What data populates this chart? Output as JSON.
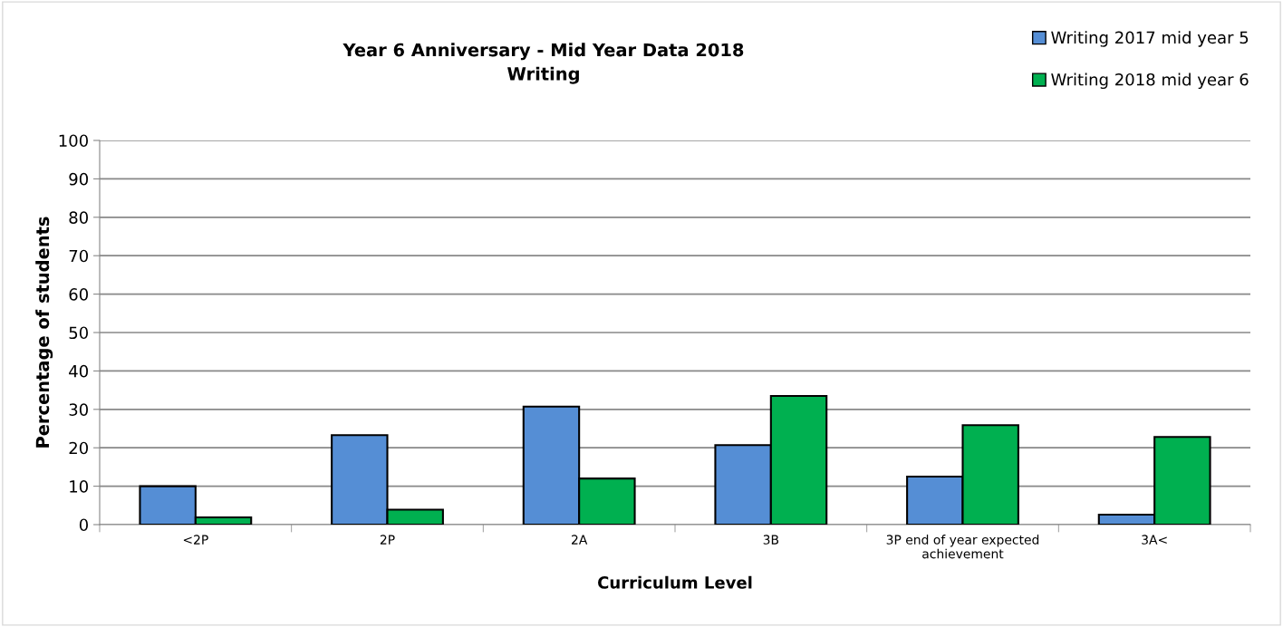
{
  "chart_data": {
    "type": "bar",
    "title": "Year 6 Anniversary - Mid Year Data 2018\nWriting",
    "xlabel": "Curriculum Level",
    "ylabel": "Percentage of students",
    "categories": [
      "<2P",
      "2P",
      "2A",
      "3B",
      "3P end of year expected\nachievement",
      "3A<"
    ],
    "series": [
      {
        "name": "Writing 2017 mid year 5",
        "color": "#558ed5",
        "values": [
          10.0,
          23.3,
          30.7,
          20.7,
          12.5,
          2.6
        ]
      },
      {
        "name": "Writing 2018 mid year 6",
        "color": "#00b050",
        "values": [
          1.9,
          3.9,
          12.0,
          33.5,
          25.9,
          22.8
        ]
      }
    ],
    "ylim": [
      0,
      100
    ],
    "yticks": [
      0,
      10,
      20,
      30,
      40,
      50,
      60,
      70,
      80,
      90,
      100
    ],
    "grid": "y",
    "legend": "top right"
  }
}
